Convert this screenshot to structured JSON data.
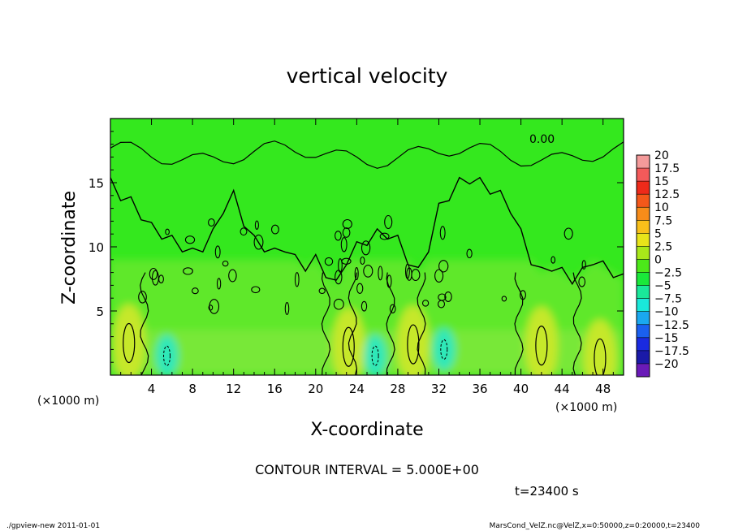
{
  "chart_data": {
    "type": "heatmap",
    "title": "vertical velocity",
    "xlabel": "X-coordinate",
    "ylabel": "Z-coordinate",
    "x_unit_left": "(×1000 m)",
    "x_unit_right": "(×1000 m)",
    "xlim": [
      0,
      50
    ],
    "ylim": [
      0,
      20
    ],
    "x_ticks": [
      "4",
      "8",
      "12",
      "16",
      "20",
      "24",
      "28",
      "32",
      "36",
      "40",
      "44",
      "48"
    ],
    "y_ticks": [
      "5",
      "10",
      "15"
    ],
    "contour_label": "0.00",
    "contour_interval_text": "CONTOUR INTERVAL = 5.000E+00",
    "time_text": "t=23400 s",
    "footer_left": "./gpview-new  2011-01-01",
    "footer_right": "MarsCond_VelZ.nc@VelZ,x=0:50000,z=0:20000,t=23400",
    "colorbar": {
      "labels": [
        "20",
        "17.5",
        "15",
        "12.5",
        "10",
        "7.5",
        "5",
        "2.5",
        "0",
        "−2.5",
        "−5",
        "−7.5",
        "−10",
        "−12.5",
        "−15",
        "−17.5",
        "−20"
      ],
      "colors": [
        "#f49a9a",
        "#f45a5a",
        "#ee2a1a",
        "#f4581a",
        "#f78c1a",
        "#f8c01a",
        "#e8e41a",
        "#a8e81a",
        "#4ce81a",
        "#1ae83a",
        "#1ae89a",
        "#1ae8da",
        "#1aa8f0",
        "#1a60f0",
        "#1a2ae0",
        "#1a1aa8",
        "#6a1ab8"
      ]
    },
    "updrafts": [
      {
        "x": 1.8,
        "z": 2.5,
        "w": 7.5
      },
      {
        "x": 23.2,
        "z": 2.2,
        "w": 7.5
      },
      {
        "x": 29.5,
        "z": 2.4,
        "w": 7.5
      },
      {
        "x": 42.0,
        "z": 2.3,
        "w": 7.5
      },
      {
        "x": 47.7,
        "z": 1.3,
        "w": 5.0
      }
    ],
    "downdrafts": [
      {
        "x": 5.5,
        "z": 1.5,
        "w": -5.0
      },
      {
        "x": 25.8,
        "z": 1.5,
        "w": -5.0
      },
      {
        "x": 32.5,
        "z": 2.0,
        "w": -5.0
      }
    ],
    "interface_profile_x": [
      0,
      1,
      2,
      3,
      4,
      5,
      6,
      7,
      8,
      9,
      10,
      11,
      12,
      13,
      14,
      15,
      16,
      17,
      18,
      19,
      20,
      21,
      22,
      23,
      24,
      25,
      26,
      27,
      28,
      29,
      30,
      31,
      32,
      33,
      34,
      35,
      36,
      37,
      38,
      39,
      40,
      41,
      42,
      43,
      44,
      45,
      46,
      47,
      48,
      49,
      50
    ],
    "interface_profile_z": [
      15,
      14,
      13.5,
      12.5,
      11.5,
      11,
      10.5,
      10,
      9.5,
      10,
      11,
      13,
      14,
      12,
      10.5,
      10,
      9.5,
      10,
      9,
      8.5,
      9,
      8,
      7,
      9,
      10,
      10.5,
      11,
      11,
      10.5,
      9,
      8,
      10,
      13,
      14,
      15,
      15.3,
      15,
      14.5,
      14,
      13,
      11,
      9,
      8,
      8.5,
      8,
      7.5,
      8,
      9,
      8.5,
      8,
      7.5
    ]
  }
}
